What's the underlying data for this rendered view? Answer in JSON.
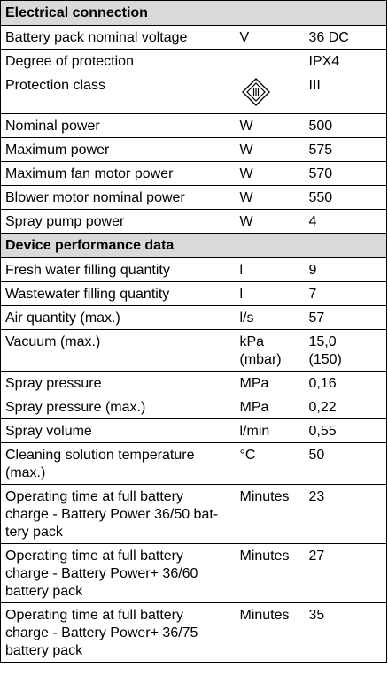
{
  "sections": [
    {
      "title": "Electrical connection",
      "rows": [
        {
          "param": "Battery pack nominal voltage",
          "unit": "V",
          "value": "36 DC"
        },
        {
          "param": "Degree of protection",
          "unit": "",
          "value": "IPX4"
        },
        {
          "param": "Protection class",
          "unit": "",
          "unit_icon": "protection-class-iii-icon",
          "value": "III"
        },
        {
          "param": "Nominal power",
          "unit": "W",
          "value": "500"
        },
        {
          "param": "Maximum power",
          "unit": "W",
          "value": "575"
        },
        {
          "param": "Maximum fan motor power",
          "unit": "W",
          "value": "570"
        },
        {
          "param": "Blower motor nominal power",
          "unit": "W",
          "value": "550"
        },
        {
          "param": "Spray pump power",
          "unit": "W",
          "value": "4"
        }
      ]
    },
    {
      "title": "Device performance data",
      "rows": [
        {
          "param": "Fresh water filling quantity",
          "unit": "l",
          "value": "9"
        },
        {
          "param": "Wastewater filling quantity",
          "unit": "l",
          "value": "7"
        },
        {
          "param": "Air quantity (max.)",
          "unit": "l/s",
          "value": "57"
        },
        {
          "param": "Vacuum (max.)",
          "unit": "kPa\n(mbar)",
          "value": "15,0\n(150)"
        },
        {
          "param": "Spray pressure",
          "unit": "MPa",
          "value": "0,16"
        },
        {
          "param": "Spray pressure (max.)",
          "unit": "MPa",
          "value": "0,22"
        },
        {
          "param": "Spray volume",
          "unit": "l/min",
          "value": "0,55"
        },
        {
          "param": "Cleaning solution temperature\n(max.)",
          "unit": "°C",
          "value": "50"
        },
        {
          "param": "Operating time at full battery\ncharge - Battery Power 36/50 bat-\ntery pack",
          "unit": "Minutes",
          "value": "23"
        },
        {
          "param": "Operating time at full battery\ncharge - Battery Power+ 36/60\nbattery pack",
          "unit": "Minutes",
          "value": "27"
        },
        {
          "param": "Operating time at full battery\ncharge - Battery Power+ 36/75\nbattery pack",
          "unit": "Minutes",
          "value": "35"
        }
      ]
    }
  ]
}
